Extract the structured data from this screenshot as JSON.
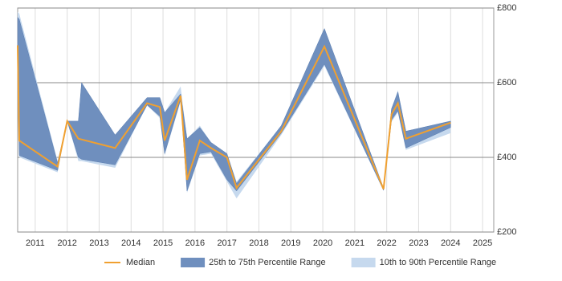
{
  "chart_data": {
    "type": "area-range",
    "x": [
      2010.45,
      2010.5,
      2011.7,
      2012.0,
      2012.35,
      2012.45,
      2013.5,
      2014.5,
      2014.9,
      2015.05,
      2015.55,
      2015.75,
      2016.15,
      2016.5,
      2017.0,
      2017.3,
      2018.7,
      2020.05,
      2021.9,
      2022.15,
      2022.35,
      2022.6,
      2024.0
    ],
    "series": [
      {
        "name": "10th to 90th Percentile Range",
        "color": "#c6d9ee",
        "high": [
          790,
          785,
          390,
          497,
          497,
          600,
          460,
          560,
          560,
          520,
          590,
          450,
          485,
          440,
          410,
          335,
          485,
          745,
          318,
          530,
          580,
          470,
          498
        ],
        "low": [
          690,
          400,
          360,
          497,
          390,
          390,
          372,
          540,
          505,
          405,
          550,
          305,
          405,
          410,
          335,
          290,
          460,
          645,
          310,
          495,
          520,
          420,
          465
        ]
      },
      {
        "name": "25th to 75th Percentile Range",
        "color": "#6f8fbe",
        "high": [
          775,
          770,
          385,
          497,
          497,
          600,
          460,
          560,
          560,
          520,
          570,
          450,
          480,
          440,
          410,
          330,
          485,
          745,
          318,
          530,
          575,
          470,
          497
        ],
        "low": [
          700,
          405,
          365,
          497,
          400,
          395,
          380,
          540,
          510,
          410,
          555,
          310,
          410,
          415,
          340,
          310,
          465,
          650,
          312,
          500,
          525,
          425,
          480
        ]
      },
      {
        "name": "Median",
        "color": "#f0a030",
        "values": [
          700,
          445,
          375,
          497,
          450,
          448,
          425,
          545,
          535,
          445,
          565,
          340,
          445,
          425,
          400,
          318,
          470,
          697,
          315,
          515,
          545,
          450,
          493
        ]
      }
    ],
    "xlim": [
      2010.45,
      2025.35
    ],
    "xticks": [
      2011,
      2012,
      2013,
      2014,
      2015,
      2016,
      2017,
      2018,
      2019,
      2020,
      2021,
      2022,
      2023,
      2024,
      2025
    ],
    "ylim": [
      200,
      800
    ],
    "yticks": [
      {
        "value": 200,
        "label": "£200"
      },
      {
        "value": 400,
        "label": "£400"
      },
      {
        "value": 600,
        "label": "£600"
      },
      {
        "value": 800,
        "label": "£800"
      }
    ],
    "grid": true,
    "legend": "bottom"
  }
}
